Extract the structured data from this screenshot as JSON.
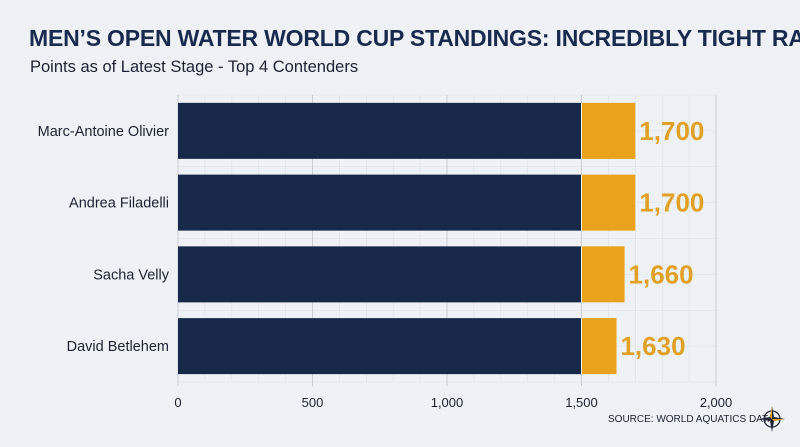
{
  "title": "MEN’S OPEN WATER WORLD CUP STANDINGS: INCREDIBLY TIGHT RACE",
  "subtitle": "Points as of Latest Stage - Top 4 Contenders",
  "source": "SOURCE: WORLD AQUATICS DATA",
  "colors": {
    "base_bar": "#182849",
    "highlight_bar": "#e8a21b",
    "value_label": "#e0a124",
    "grid": "#c9ced6"
  },
  "chart_data": {
    "type": "bar",
    "orientation": "horizontal",
    "categories": [
      "Marc-Antoine Olivier",
      "Andrea Filadelli",
      "Sacha Velly",
      "David Betlehem"
    ],
    "values": [
      1700,
      1700,
      1660,
      1630
    ],
    "value_labels": [
      "1,700",
      "1,700",
      "1,660",
      "1,630"
    ],
    "highlight_threshold": 1500,
    "xlim": [
      0,
      2000
    ],
    "x_ticks": [
      0,
      500,
      1000,
      1500,
      2000
    ],
    "x_tick_labels": [
      "0",
      "500",
      "1,000",
      "1,500",
      "2,000"
    ],
    "grid": true
  }
}
